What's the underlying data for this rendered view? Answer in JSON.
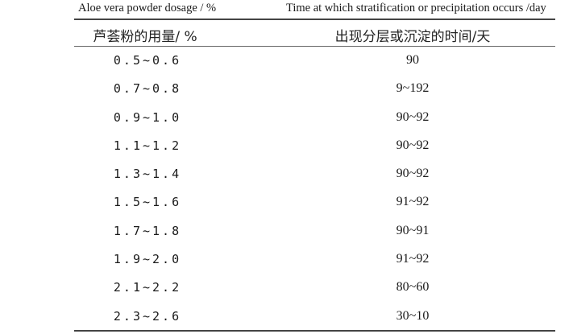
{
  "header_en": {
    "col1": "Aloe vera powder dosage / %",
    "col2": "Time at which stratification or precipitation occurs /day"
  },
  "header_cn": {
    "col1": "芦荟粉的用量/ %",
    "col2": "出现分层或沉淀的时间/天"
  },
  "rows": [
    {
      "dose": "0.5~0.6",
      "time": "90"
    },
    {
      "dose": "0.7~0.8",
      "time": "9~192"
    },
    {
      "dose": "0.9~1.0",
      "time": "90~92"
    },
    {
      "dose": "1.1~1.2",
      "time": "90~92"
    },
    {
      "dose": "1.3~1.4",
      "time": "90~92"
    },
    {
      "dose": "1.5~1.6",
      "time": "91~92"
    },
    {
      "dose": "1.7~1.8",
      "time": "90~91"
    },
    {
      "dose": "1.9~2.0",
      "time": "91~92"
    },
    {
      "dose": "2.1~2.2",
      "time": "80~60"
    },
    {
      "dose": "2.3~2.6",
      "time": "30~10"
    }
  ]
}
